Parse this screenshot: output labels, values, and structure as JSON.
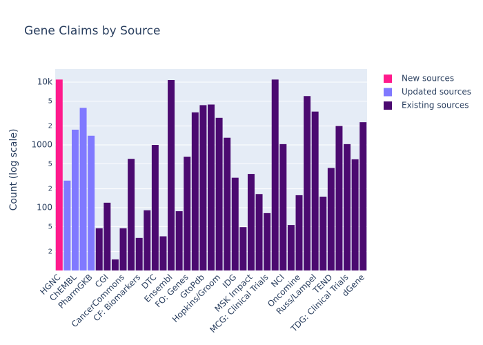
{
  "chart_data": {
    "type": "bar",
    "title": "Gene Claims by Source",
    "y_label": "Count (log scale)",
    "log_scale": true,
    "grid": true,
    "categories": [
      "HGNC",
      null,
      "ChEMBL",
      null,
      "PharmGKB",
      null,
      "CGI",
      null,
      "CancerCommons",
      null,
      "CF: Biomarkers",
      null,
      "DTC",
      null,
      "Ensembl",
      null,
      "FO: Genes",
      null,
      "GtoPdb",
      null,
      "Hopkins/Groom",
      null,
      "IDG",
      null,
      "MSK Impact",
      null,
      "MCG: Clinical Trials",
      null,
      "NCI",
      null,
      "Oncomine",
      null,
      "Russ/Lampel",
      null,
      "TEND",
      null,
      "TDG: Clinical Trials",
      null,
      "dGene"
    ],
    "series": [
      {
        "name": "New sources",
        "color": "#ff1a8c",
        "values": [
          11000,
          null,
          null,
          null,
          null,
          null,
          null,
          null,
          null,
          null,
          null,
          null,
          null,
          null,
          null,
          null,
          null,
          null,
          null,
          null,
          null,
          null,
          null,
          null,
          null,
          null,
          null,
          null,
          null,
          null,
          null,
          null,
          null,
          null,
          null,
          null,
          null,
          null,
          null
        ]
      },
      {
        "name": "Updated sources",
        "color": "#8079ff",
        "values": [
          null,
          270,
          1750,
          3900,
          1400,
          null,
          null,
          null,
          null,
          null,
          null,
          null,
          null,
          null,
          null,
          null,
          null,
          null,
          null,
          null,
          null,
          null,
          null,
          null,
          null,
          null,
          null,
          null,
          null,
          null,
          null,
          null,
          null,
          null,
          null,
          null,
          null,
          null,
          null
        ]
      },
      {
        "name": "Existing sources",
        "color": "#4b0a70",
        "values": [
          null,
          null,
          null,
          null,
          null,
          47,
          120,
          15,
          47,
          600,
          33,
          91,
          1000,
          35,
          10800,
          88,
          650,
          3300,
          4300,
          4400,
          2700,
          1300,
          300,
          49,
          345,
          165,
          82,
          11000,
          1030,
          53,
          158,
          6000,
          3400,
          150,
          430,
          2000,
          1030,
          590,
          2300
        ]
      }
    ],
    "ylim": [
      10,
      16200
    ],
    "yticks": [
      {
        "value": 20,
        "label": "2"
      },
      {
        "value": 50,
        "label": "5"
      },
      100,
      {
        "value": 200,
        "label": "2"
      },
      {
        "value": 500,
        "label": "5"
      },
      1000,
      {
        "value": 2000,
        "label": "2"
      },
      {
        "value": 5000,
        "label": "5"
      },
      {
        "value": 10000,
        "label": "10k"
      }
    ]
  }
}
